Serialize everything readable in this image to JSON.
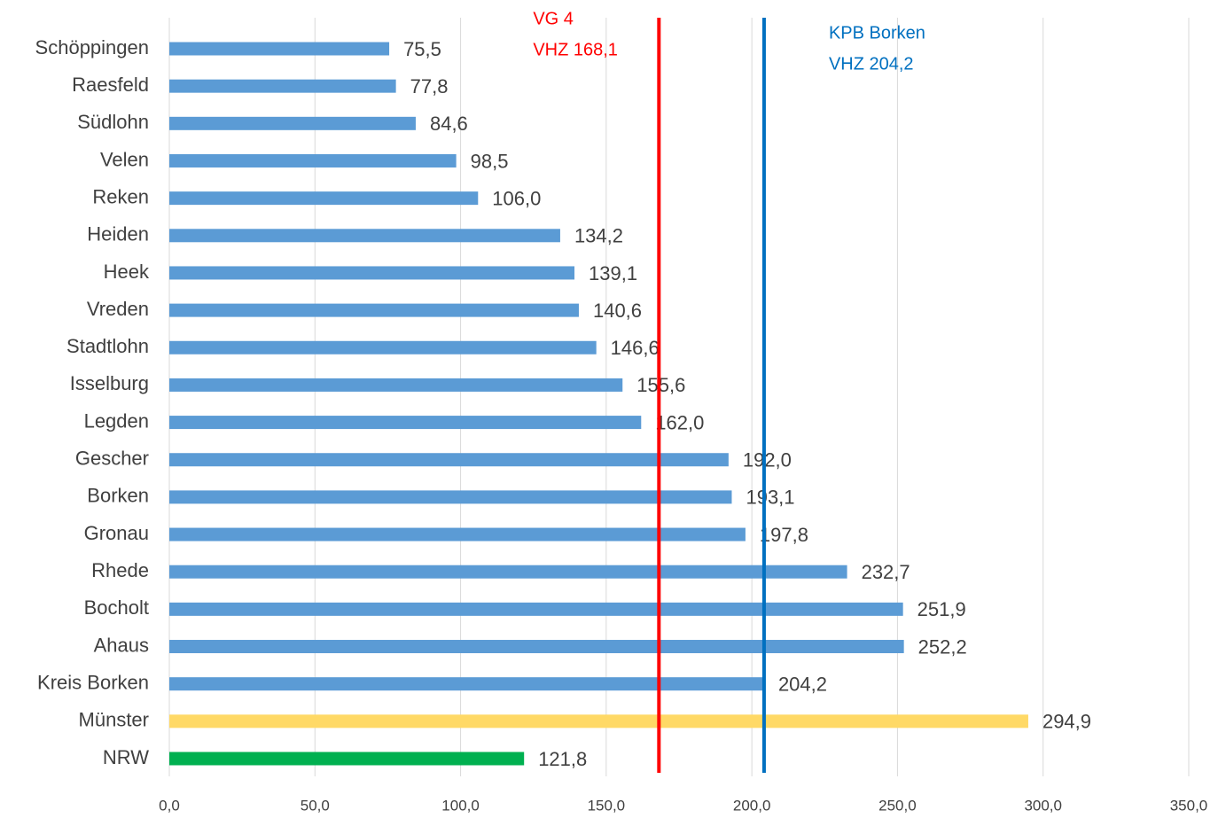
{
  "chart_data": {
    "type": "barh",
    "categories": [
      "Schöppingen",
      "Raesfeld",
      "Südlohn",
      "Velen",
      "Reken",
      "Heiden",
      "Heek",
      "Vreden",
      "Stadtlohn",
      "Isselburg",
      "Legden",
      "Gescher",
      "Borken",
      "Gronau",
      "Rhede",
      "Bocholt",
      "Ahaus",
      "Kreis Borken",
      "Münster",
      "NRW"
    ],
    "values": [
      75.5,
      77.8,
      84.6,
      98.5,
      106.0,
      134.2,
      139.1,
      140.6,
      146.6,
      155.6,
      162.0,
      192.0,
      193.1,
      197.8,
      232.7,
      251.9,
      252.2,
      204.2,
      294.9,
      121.8
    ],
    "value_labels": [
      "75,5",
      "77,8",
      "84,6",
      "98,5",
      "106,0",
      "134,2",
      "139,1",
      "140,6",
      "146,6",
      "155,6",
      "162,0",
      "192,0",
      "193,1",
      "197,8",
      "232,7",
      "251,9",
      "252,2",
      "204,2",
      "294,9",
      "121,8"
    ],
    "colors": [
      "#5b9bd5",
      "#5b9bd5",
      "#5b9bd5",
      "#5b9bd5",
      "#5b9bd5",
      "#5b9bd5",
      "#5b9bd5",
      "#5b9bd5",
      "#5b9bd5",
      "#5b9bd5",
      "#5b9bd5",
      "#5b9bd5",
      "#5b9bd5",
      "#5b9bd5",
      "#5b9bd5",
      "#5b9bd5",
      "#5b9bd5",
      "#5b9bd5",
      "#ffd966",
      "#00b050"
    ],
    "xlim": [
      0,
      350
    ],
    "xticks": [
      {
        "value": 0,
        "label": "0,0"
      },
      {
        "value": 50,
        "label": "50,0"
      },
      {
        "value": 100,
        "label": "100,0"
      },
      {
        "value": 150,
        "label": "150,0"
      },
      {
        "value": 200,
        "label": "200,0"
      },
      {
        "value": 250,
        "label": "250,0"
      },
      {
        "value": 300,
        "label": "300,0"
      },
      {
        "value": 350,
        "label": "350,0"
      }
    ],
    "grid": true,
    "reference_lines": [
      {
        "value": 168.1,
        "color": "#ff0000",
        "label": [
          "VG 4",
          "VHZ 168,1"
        ]
      },
      {
        "value": 204.2,
        "color": "#0070c0",
        "label": [
          "KPB Borken",
          "VHZ 204,2"
        ]
      }
    ]
  }
}
